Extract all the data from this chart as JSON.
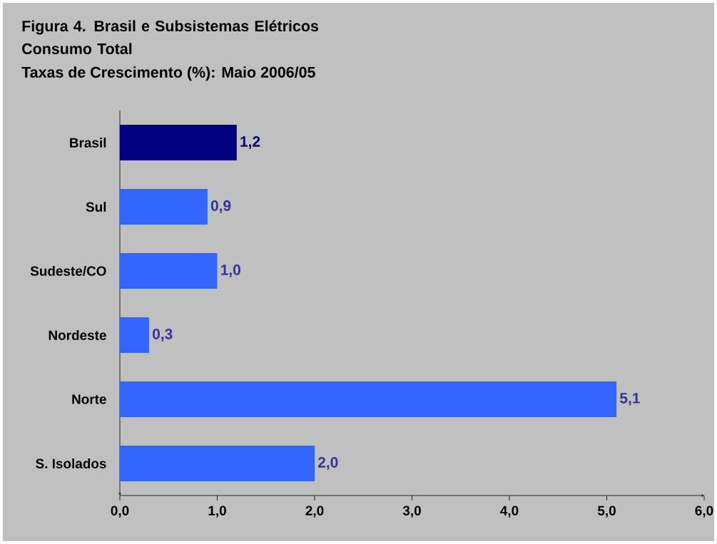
{
  "chart_data": {
    "type": "bar",
    "orientation": "horizontal",
    "title": "Figura 4. Brasil e Subsistemas Elétricos Consumo Total",
    "subtitle": "Taxas de Crescimento (%): Maio 2006/05",
    "categories": [
      "Brasil",
      "Sul",
      "Sudeste/CO",
      "Nordeste",
      "Norte",
      "S. Isolados"
    ],
    "values": [
      1.2,
      0.9,
      1.0,
      0.3,
      5.1,
      2.0
    ],
    "colors": [
      "#000080",
      "#3366ff",
      "#3366ff",
      "#3366ff",
      "#3366ff",
      "#3366ff"
    ],
    "value_labels": [
      "1,2",
      "0,9",
      "1,0",
      "0,3",
      "5,1",
      "2,0"
    ],
    "xlim": [
      0,
      6
    ],
    "xticks": [
      {
        "value": 0,
        "label": "0,0"
      },
      {
        "value": 1,
        "label": "1,0"
      },
      {
        "value": 2,
        "label": "2,0"
      },
      {
        "value": 3,
        "label": "3,0"
      },
      {
        "value": 4,
        "label": "4,0"
      },
      {
        "value": 5,
        "label": "5,0"
      },
      {
        "value": 6,
        "label": "6,0"
      }
    ]
  }
}
